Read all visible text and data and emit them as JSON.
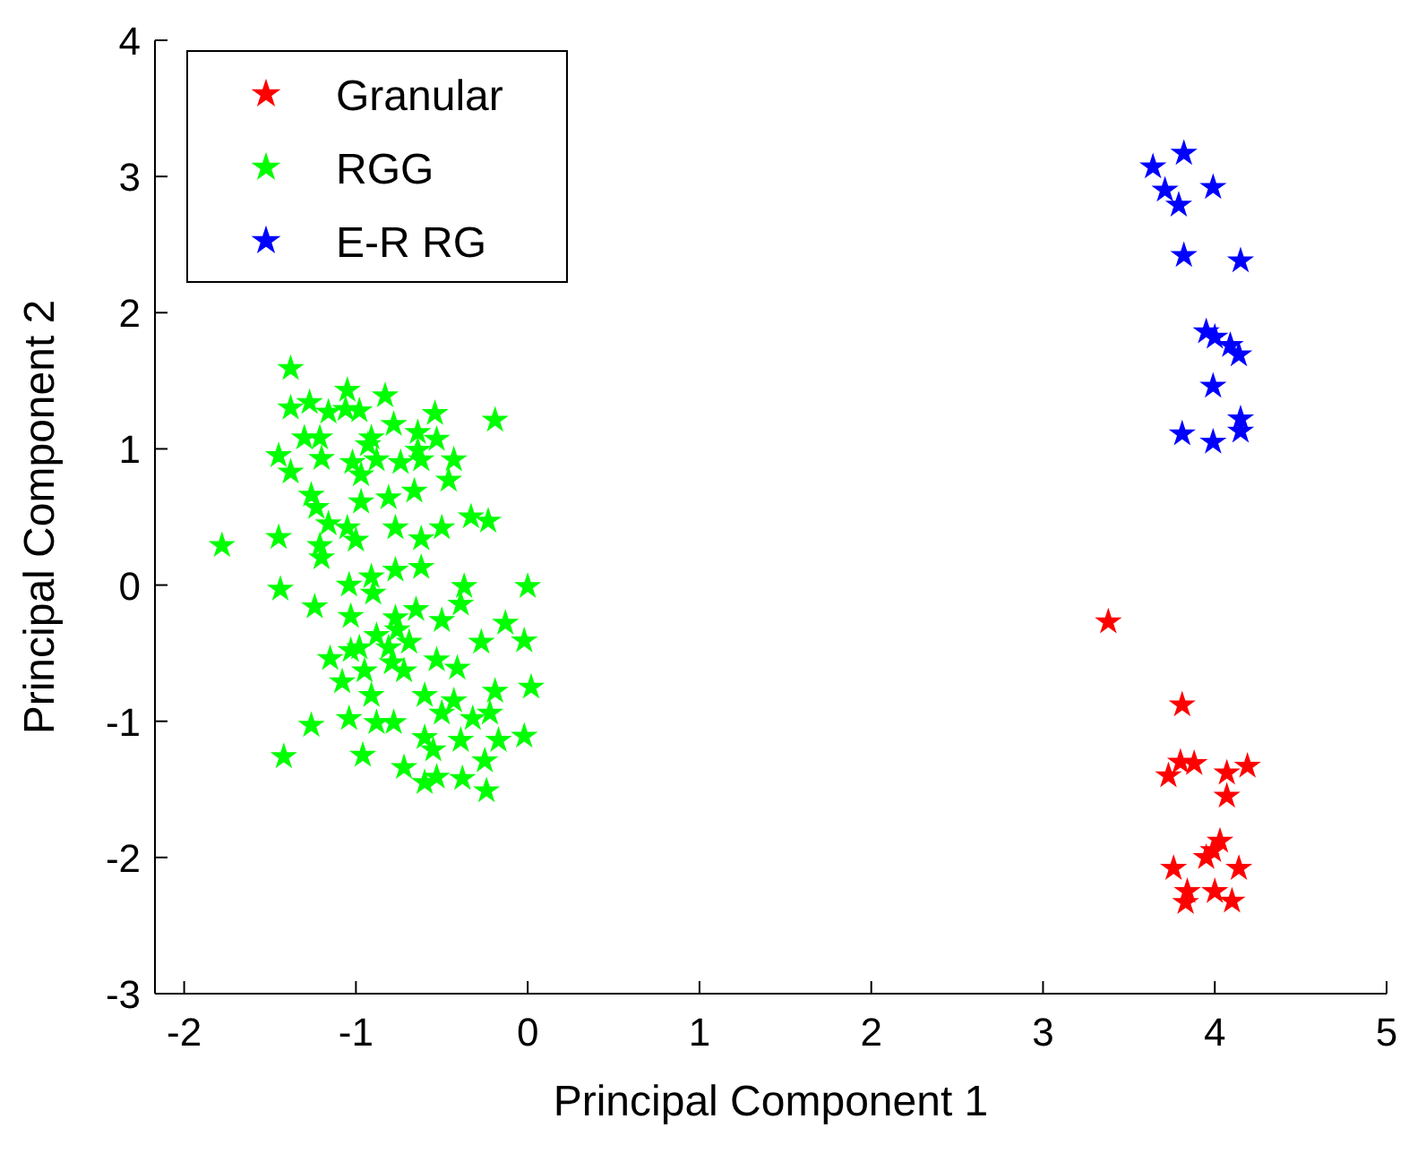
{
  "chart_data": {
    "type": "scatter",
    "xlabel": "Principal Component 1",
    "ylabel": "Principal Component 2",
    "xlim": [
      -2.17,
      5
    ],
    "ylim": [
      -3,
      4
    ],
    "xticks": [
      -2,
      -1,
      0,
      1,
      2,
      3,
      4,
      5
    ],
    "yticks": [
      -3,
      -2,
      -1,
      0,
      1,
      2,
      3,
      4
    ],
    "grid": false,
    "legend": "top left",
    "marker": "star",
    "series": [
      {
        "name": "Granular",
        "color": "#ff0000",
        "x": [
          3.38,
          3.81,
          3.73,
          3.8,
          3.88,
          4.07,
          4.19,
          4.07,
          4.03,
          3.99,
          3.95,
          3.76,
          4.14,
          4.0,
          3.84,
          3.83,
          4.1
        ],
        "values": [
          -0.27,
          -0.88,
          -1.4,
          -1.3,
          -1.31,
          -1.38,
          -1.33,
          -1.55,
          -1.88,
          -1.95,
          -2.0,
          -2.08,
          -2.08,
          -2.25,
          -2.25,
          -2.33,
          -2.32
        ]
      },
      {
        "name": "RGG",
        "color": "#00ff00",
        "x": [
          -1.38,
          -1.05,
          -0.83,
          -1.38,
          -1.27,
          -1.16,
          -1.06,
          -0.98,
          -0.54,
          -0.19,
          -1.3,
          -1.21,
          -0.91,
          -0.78,
          -0.64,
          -0.53,
          -1.45,
          -1.2,
          -1.02,
          -0.88,
          -0.74,
          -0.62,
          -0.43,
          -1.38,
          -0.46,
          -1.26,
          -0.97,
          -0.81,
          -0.66,
          -1.23,
          -1.16,
          -1.05,
          -1.0,
          -0.77,
          -0.62,
          -0.5,
          -0.33,
          -0.23,
          -1.45,
          -1.78,
          -1.21,
          -1.2,
          -1.04,
          -0.91,
          -0.9,
          -0.77,
          -0.62,
          -1.44,
          -1.24,
          -1.03,
          -0.65,
          -0.37,
          -0.39,
          0.0,
          -0.76,
          -0.81,
          -0.88,
          -0.69,
          -0.5,
          -0.27,
          -0.13,
          -0.02,
          -1.15,
          -1.03,
          -0.95,
          -0.79,
          -0.53,
          -0.41,
          -0.19,
          0.02,
          -1.08,
          -0.91,
          -0.6,
          -0.5,
          -0.43,
          -1.04,
          -1.26,
          -0.88,
          -0.78,
          -0.32,
          -0.22,
          -0.6,
          -0.39,
          -0.17,
          -0.02,
          -1.42,
          -0.96,
          -0.72,
          -0.55,
          -0.25,
          -0.53,
          -0.38,
          -0.24,
          -0.6,
          -0.98,
          -0.72,
          -0.77,
          -0.97,
          -0.93,
          -0.64
        ],
        "values": [
          1.59,
          1.43,
          1.39,
          1.3,
          1.34,
          1.27,
          1.29,
          1.28,
          1.26,
          1.21,
          1.08,
          1.08,
          1.08,
          1.18,
          1.12,
          1.07,
          0.95,
          0.93,
          0.9,
          0.92,
          0.9,
          0.92,
          0.92,
          0.83,
          0.77,
          0.66,
          0.61,
          0.64,
          0.69,
          0.57,
          0.45,
          0.42,
          0.33,
          0.42,
          0.34,
          0.42,
          0.5,
          0.47,
          0.35,
          0.29,
          0.29,
          0.2,
          0.0,
          0.06,
          -0.06,
          0.11,
          0.13,
          -0.03,
          -0.16,
          -0.23,
          -0.18,
          -0.01,
          -0.14,
          -0.01,
          -0.33,
          -0.46,
          -0.37,
          -0.42,
          -0.26,
          -0.42,
          -0.28,
          -0.41,
          -0.54,
          -0.48,
          -0.63,
          -0.57,
          -0.55,
          -0.61,
          -0.78,
          -0.75,
          -0.71,
          -0.81,
          -0.81,
          -0.94,
          -0.85,
          -0.98,
          -1.03,
          -1.01,
          -1.01,
          -0.98,
          -0.94,
          -1.12,
          -1.14,
          -1.14,
          -1.11,
          -1.26,
          -1.25,
          -1.34,
          -1.21,
          -1.29,
          -1.41,
          -1.42,
          -1.51,
          -1.45,
          -0.46,
          -0.63,
          -0.24,
          0.81,
          1.03,
          0.99
        ]
      },
      {
        "name": "E-R RG",
        "color": "#0000ff",
        "x": [
          3.64,
          3.82,
          3.71,
          3.79,
          3.99,
          3.82,
          4.15,
          3.95,
          4.0,
          4.09,
          4.14,
          3.99,
          4.15,
          4.15,
          3.81,
          3.99
        ],
        "values": [
          3.07,
          3.17,
          2.9,
          2.79,
          2.92,
          2.42,
          2.38,
          1.86,
          1.82,
          1.76,
          1.69,
          1.46,
          1.22,
          1.13,
          1.11,
          1.05
        ]
      }
    ]
  }
}
